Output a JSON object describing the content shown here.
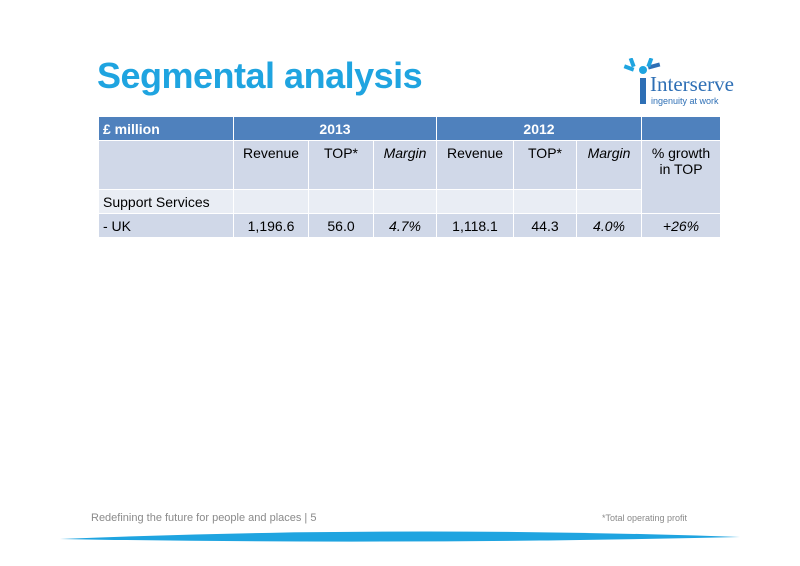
{
  "header": {
    "title": "Segmental analysis",
    "logo_name": "Interserve",
    "logo_tagline": "ingenuity at work"
  },
  "table": {
    "top_header": [
      "£ million",
      "2013",
      "2012"
    ],
    "sub_header": [
      "Revenue",
      "TOP*",
      "Margin",
      "Revenue",
      "TOP*",
      "Margin",
      "% growth in TOP"
    ],
    "section": "Support Services",
    "rows": [
      [
        "- UK",
        "1,196.6",
        "56.0",
        "4.7%",
        "1,118.1",
        "44.3",
        "4.0%",
        "+26%"
      ]
    ]
  },
  "footer": {
    "text": "Redefining the future for people and places | 5",
    "note": "*Total operating profit"
  }
}
